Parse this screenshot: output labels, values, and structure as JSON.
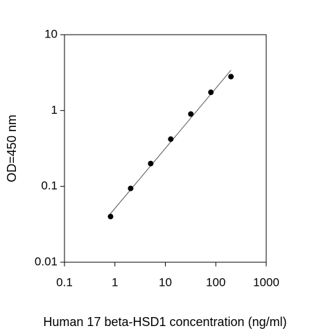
{
  "chart_data": {
    "type": "scatter",
    "x_label": "Human 17 beta-HSD1 concentration (ng/ml)",
    "y_label": "OD=450 nm",
    "x_scale": "log",
    "y_scale": "log",
    "xlim": [
      0.1,
      1000
    ],
    "ylim": [
      0.01,
      10
    ],
    "xticks": [
      0.1,
      1,
      10,
      100,
      1000
    ],
    "yticks": [
      0.01,
      0.1,
      1,
      10
    ],
    "color": "#000000",
    "points": {
      "x": [
        0.82,
        2.05,
        5.12,
        12.8,
        32,
        80,
        200
      ],
      "y": [
        0.04,
        0.094,
        0.2,
        0.42,
        0.9,
        1.74,
        2.8
      ]
    },
    "fit_line": {
      "x": [
        0.8,
        200
      ],
      "y": [
        0.043,
        3.4
      ],
      "color": "#555555"
    }
  }
}
